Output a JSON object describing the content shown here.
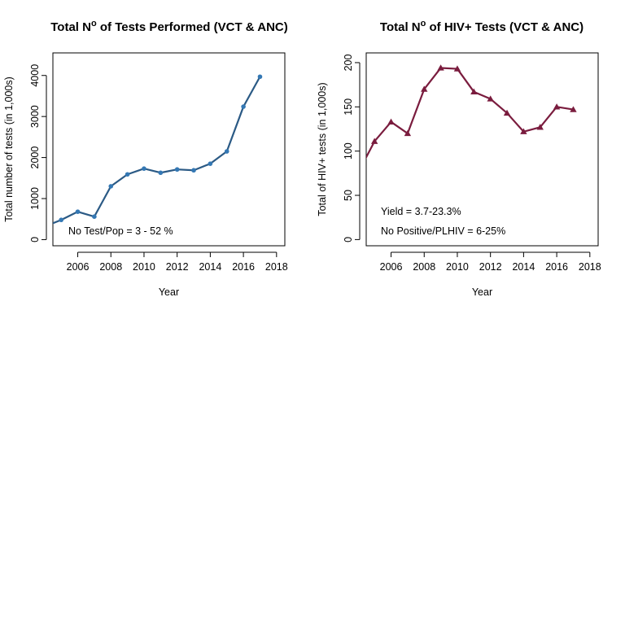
{
  "chart_data": [
    {
      "type": "line",
      "title": "Total N",
      "title_superscript": "o",
      "title_rest": " of Tests Performed (VCT & ANC)",
      "xlabel": "Year",
      "ylabel": "Total number of tests (in 1,000s)",
      "xlim": [
        2004.5,
        2018.5
      ],
      "ylim": [
        -150,
        4550
      ],
      "xticks": [
        2006,
        2008,
        2010,
        2012,
        2014,
        2016,
        2018
      ],
      "yticks": [
        0,
        1000,
        2000,
        3000,
        4000
      ],
      "color": "#2b5a85",
      "point_color": "#3478b4",
      "marker": "circle",
      "annotations": [
        "No Test/Pop =  3 - 52 %"
      ],
      "series": [
        {
          "x": [
            2004,
            2005,
            2006,
            2007,
            2008,
            2009,
            2010,
            2011,
            2012,
            2013,
            2014,
            2015,
            2016,
            2017
          ],
          "values": [
            320,
            480,
            680,
            560,
            1300,
            1590,
            1730,
            1630,
            1710,
            1690,
            1850,
            2150,
            3240,
            3970
          ]
        }
      ]
    },
    {
      "type": "line",
      "title": "Total N",
      "title_superscript": "o",
      "title_rest": " of HIV+ Tests (VCT & ANC)",
      "xlabel": "Year",
      "ylabel": "Total of HIV+ tests (in 1,000s)",
      "xlim": [
        2004.5,
        2018.5
      ],
      "ylim": [
        -7,
        211
      ],
      "xticks": [
        2006,
        2008,
        2010,
        2012,
        2014,
        2016,
        2018
      ],
      "yticks": [
        0,
        50,
        100,
        150,
        200
      ],
      "color": "#7a1c3e",
      "point_color": "#7a1c3e",
      "marker": "triangle",
      "annotations": [
        "Yield = 3.7-23.3%",
        "No Positive/PLHIV = 6-25%"
      ],
      "series": [
        {
          "x": [
            2004,
            2005,
            2006,
            2007,
            2008,
            2009,
            2010,
            2011,
            2012,
            2013,
            2014,
            2015,
            2016,
            2017
          ],
          "values": [
            75,
            111,
            133,
            120,
            170,
            194,
            193,
            167,
            159,
            143,
            122,
            127,
            150,
            147
          ]
        }
      ]
    }
  ]
}
